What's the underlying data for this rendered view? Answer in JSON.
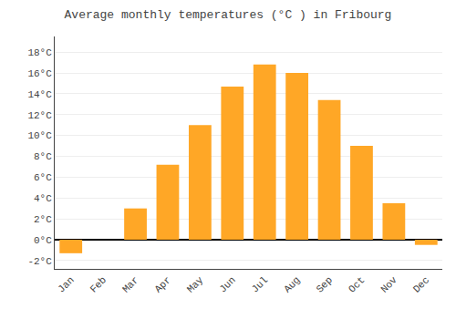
{
  "chart_data": {
    "type": "bar",
    "title": "Average monthly temperatures (°C ) in Fribourg",
    "categories": [
      "Jan",
      "Feb",
      "Mar",
      "Apr",
      "May",
      "Jun",
      "Jul",
      "Aug",
      "Sep",
      "Oct",
      "Nov",
      "Dec"
    ],
    "values": [
      -1.3,
      0,
      3.0,
      7.2,
      11.0,
      14.7,
      16.8,
      16.0,
      13.4,
      9.0,
      3.5,
      -0.5
    ],
    "color": "#FFA726",
    "ylim": [
      -2.8,
      19.5
    ],
    "yticks": [
      {
        "value": -2,
        "label": "-2°C"
      },
      {
        "value": 0,
        "label": "0°C"
      },
      {
        "value": 2,
        "label": "2°C"
      },
      {
        "value": 4,
        "label": "4°C"
      },
      {
        "value": 6,
        "label": "6°C"
      },
      {
        "value": 8,
        "label": "8°C"
      },
      {
        "value": 10,
        "label": "10°C"
      },
      {
        "value": 12,
        "label": "12°C"
      },
      {
        "value": 14,
        "label": "14°C"
      },
      {
        "value": 16,
        "label": "16°C"
      },
      {
        "value": 18,
        "label": "18°C"
      }
    ],
    "grid": true
  }
}
